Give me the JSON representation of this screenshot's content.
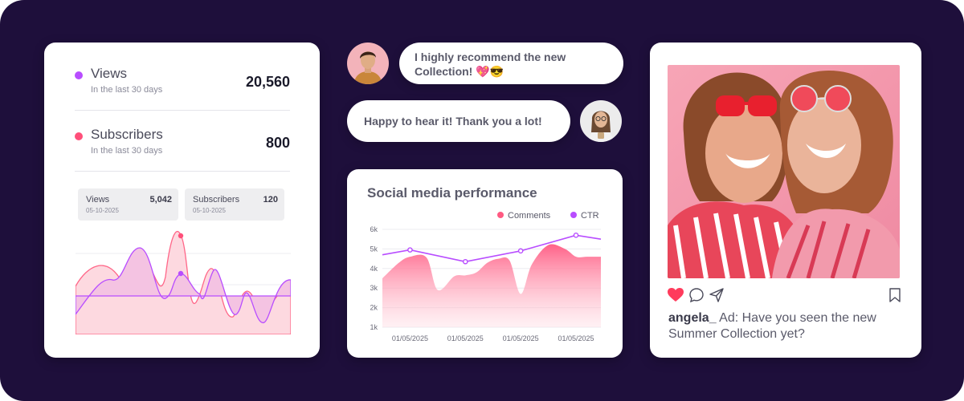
{
  "stats": {
    "views": {
      "label": "Views",
      "sublabel": "In the last 30 days",
      "value": "20,560",
      "color": "#b84dff"
    },
    "subscribers": {
      "label": "Subscribers",
      "sublabel": "In the last 30 days",
      "value": "800",
      "color": "#ff4f7a"
    },
    "tooltips": [
      {
        "name": "Views",
        "value": "5,042",
        "date": "05-10-2025"
      },
      {
        "name": "Subscribers",
        "value": "120",
        "date": "05-10-2025"
      }
    ]
  },
  "chat": {
    "message1": {
      "line1": "I highly recommend the new",
      "line2": "Collection! 💖😎"
    },
    "message2": {
      "text": "Happy to hear it! Thank you a lot!"
    }
  },
  "chart_data": {
    "type": "area",
    "title": "Social media performance",
    "legend": [
      "Comments",
      "CTR"
    ],
    "legend_position": "top-right",
    "y_ticks": [
      "1k",
      "2k",
      "3k",
      "4k",
      "5k",
      "6k"
    ],
    "x_ticks": [
      "01/05/2025",
      "01/05/2025",
      "01/05/2025",
      "01/05/2025"
    ],
    "ylim": [
      1,
      6
    ],
    "series": [
      {
        "name": "Comments",
        "color": "#ff5a82",
        "x": [
          0,
          0.6,
          1.0,
          1.6,
          2.0,
          2.6,
          3.0,
          3.4,
          3.8,
          4.2,
          4.6,
          5.0,
          5.4,
          6.0,
          6.6,
          7.0,
          7.4,
          7.9
        ],
        "values": [
          3.5,
          4.3,
          4.6,
          4.55,
          2.9,
          3.6,
          3.65,
          3.8,
          4.3,
          4.5,
          4.4,
          2.7,
          4.2,
          5.2,
          5.0,
          4.6,
          4.6,
          4.6
        ]
      },
      {
        "name": "CTR",
        "color": "#b84dff",
        "x": [
          0,
          1.0,
          3.0,
          5.0,
          7.0,
          7.9
        ],
        "values": [
          4.7,
          4.95,
          4.35,
          4.9,
          5.7,
          5.5
        ]
      }
    ]
  },
  "post": {
    "username": "angela_",
    "caption": "Ad: Have you seen the new Summer Collection yet?"
  }
}
